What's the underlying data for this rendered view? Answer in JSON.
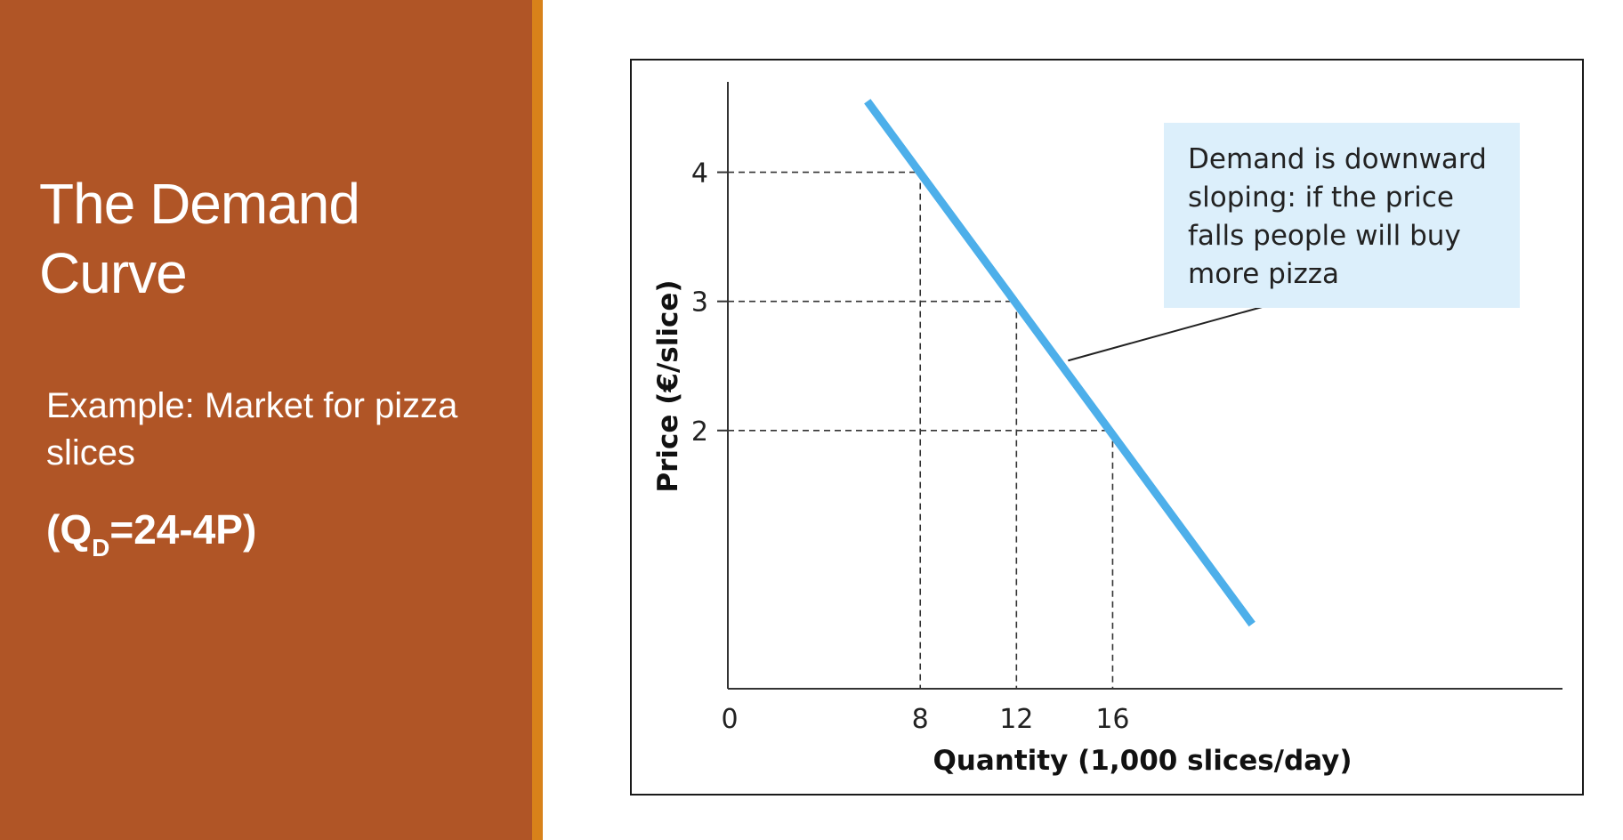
{
  "slide": {
    "title": "The Demand Curve",
    "example": "Example: Market for pizza slices",
    "equation": {
      "prefix": "(Q",
      "subscript": "D",
      "suffix": "=24-4P)"
    },
    "colors": {
      "left_panel": "#B05526",
      "accent_bar": "#D8821A",
      "text": "#FFFFFF"
    }
  },
  "chart_data": {
    "type": "line",
    "title": "",
    "xlabel": "Quantity (1,000 slices/day)",
    "ylabel": "Price (€/slice)",
    "xlim": [
      0,
      33.3
    ],
    "ylim": [
      0,
      4.7
    ],
    "x_ticks": [
      "0",
      "8",
      "12",
      "16"
    ],
    "y_ticks": [
      "2",
      "3",
      "4"
    ],
    "x_tick_values": [
      0,
      8,
      12,
      16
    ],
    "y_tick_values": [
      2,
      3,
      4
    ],
    "grid": false,
    "series": [
      {
        "values": [
          [
            5.8,
            4.55
          ],
          [
            21.8,
            0.5
          ]
        ],
        "color": "#4DAFEA"
      }
    ],
    "reference_points": [
      [
        8,
        4
      ],
      [
        12,
        3
      ],
      [
        16,
        2
      ]
    ],
    "reference_lines": "dashed",
    "annotation": {
      "text": "Demand is downward sloping: if the price falls people will buy more pizza",
      "background": "#DCEFFB",
      "pointer_target": [
        14,
        2.5
      ]
    }
  }
}
